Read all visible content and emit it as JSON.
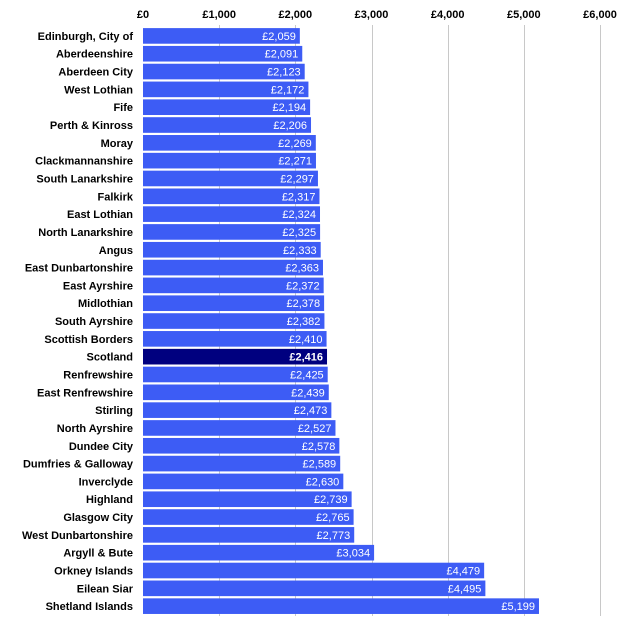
{
  "chart_data": {
    "type": "bar",
    "orientation": "horizontal",
    "title": "",
    "xlabel": "",
    "ylabel": "",
    "xlim": [
      0,
      6000
    ],
    "ticks": [
      0,
      1000,
      2000,
      3000,
      4000,
      5000,
      6000
    ],
    "tick_labels": [
      "£0",
      "£1,000",
      "£2,000",
      "£3,000",
      "£4,000",
      "£5,000",
      "£6,000"
    ],
    "tick_position": "top",
    "grid": true,
    "bar_color": "#3d5cf5",
    "highlight_color": "#00007f",
    "highlight_category": "Scotland",
    "categories": [
      "Edinburgh, City of",
      "Aberdeenshire",
      "Aberdeen City",
      "West Lothian",
      "Fife",
      "Perth & Kinross",
      "Moray",
      "Clackmannanshire",
      "South Lanarkshire",
      "Falkirk",
      "East Lothian",
      "North Lanarkshire",
      "Angus",
      "East Dunbartonshire",
      "East Ayrshire",
      "Midlothian",
      "South Ayrshire",
      "Scottish Borders",
      "Scotland",
      "Renfrewshire",
      "East Renfrewshire",
      "Stirling",
      "North Ayrshire",
      "Dundee City",
      "Dumfries & Galloway",
      "Inverclyde",
      "Highland",
      "Glasgow City",
      "West Dunbartonshire",
      "Argyll & Bute",
      "Orkney Islands",
      "Eilean Siar",
      "Shetland Islands"
    ],
    "values": [
      2059,
      2091,
      2123,
      2172,
      2194,
      2206,
      2269,
      2271,
      2297,
      2317,
      2324,
      2325,
      2333,
      2363,
      2372,
      2378,
      2382,
      2410,
      2416,
      2425,
      2439,
      2473,
      2527,
      2578,
      2589,
      2630,
      2739,
      2765,
      2773,
      3034,
      4479,
      4495,
      5199
    ],
    "value_labels": [
      "£2,059",
      "£2,091",
      "£2,123",
      "£2,172",
      "£2,194",
      "£2,206",
      "£2,269",
      "£2,271",
      "£2,297",
      "£2,317",
      "£2,324",
      "£2,325",
      "£2,333",
      "£2,363",
      "£2,372",
      "£2,378",
      "£2,382",
      "£2,410",
      "£2,416",
      "£2,425",
      "£2,439",
      "£2,473",
      "£2,527",
      "£2,578",
      "£2,589",
      "£2,630",
      "£2,739",
      "£2,765",
      "£2,773",
      "£3,034",
      "£4,479",
      "£4,495",
      "£5,199"
    ]
  }
}
